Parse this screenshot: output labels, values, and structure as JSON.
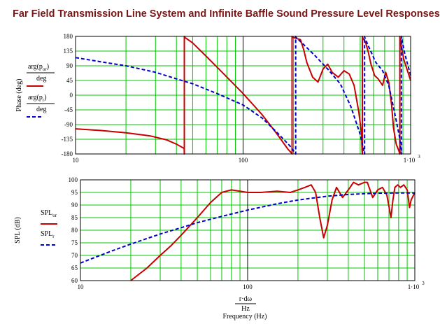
{
  "title": "Far Field Transmission Line System and Infinite Baffle Sound Pressure Level Responses",
  "colors": {
    "grid": "#00c800",
    "line_series": "#c80000",
    "baffle_series": "#0000c8",
    "frame": "#000000",
    "title": "#7a1616"
  },
  "chart_data": [
    {
      "type": "line",
      "x_scale": "log",
      "xlim": [
        10,
        1000
      ],
      "ylim": [
        -180,
        180
      ],
      "xticks": [
        10,
        100,
        1000
      ],
      "xtick_labels": [
        "10",
        "100",
        "1·10"
      ],
      "xtick_exponent": "3",
      "yticks": [
        180,
        135,
        90,
        45,
        0,
        -45,
        -90,
        -135,
        -180
      ],
      "ylabel": "Phase (deg)",
      "legend_entries": [
        {
          "num": "arg(p",
          "sub": "or",
          "close": ")",
          "den": "deg"
        },
        {
          "num": "arg(p",
          "sub": "r",
          "close": ")",
          "den": "deg"
        }
      ],
      "grid": true,
      "series": [
        {
          "color": "red",
          "style": "solid",
          "x": [
            10,
            14,
            20,
            28,
            35,
            40,
            44.5,
            44.6,
            50,
            60,
            75,
            100,
            130,
            160,
            185,
            195,
            196,
            220,
            230,
            240,
            260,
            280,
            300,
            320,
            340,
            370,
            400,
            430,
            460,
            490,
            510,
            513,
            515,
            540,
            560,
            580,
            610,
            640,
            680,
            710,
            740,
            770,
            790,
            820,
            850,
            860,
            862,
            880,
            910,
            950,
            1000
          ],
          "y": [
            -103,
            -108,
            -115,
            -125,
            -137,
            -150,
            -163,
            178,
            160,
            120,
            70,
            5,
            -60,
            -120,
            -165,
            -178,
            178,
            170,
            140,
            100,
            55,
            40,
            80,
            95,
            70,
            55,
            75,
            65,
            30,
            -50,
            -120,
            -170,
            178,
            160,
            130,
            95,
            60,
            50,
            30,
            70,
            40,
            -30,
            -100,
            -150,
            -170,
            -178,
            178,
            150,
            110,
            80,
            45
          ]
        },
        {
          "color": "blue",
          "style": "dashed",
          "x": [
            10,
            15,
            20,
            30,
            40,
            50,
            70,
            100,
            130,
            160,
            190,
            205,
            206,
            230,
            270,
            320,
            380,
            440,
            500,
            530,
            531,
            560,
            620,
            680,
            740,
            800,
            860,
            880,
            881,
            920,
            1000
          ],
          "y": [
            115,
            100,
            90,
            70,
            50,
            35,
            5,
            -30,
            -70,
            -115,
            -155,
            -178,
            178,
            155,
            120,
            80,
            35,
            -35,
            -120,
            -178,
            178,
            150,
            100,
            75,
            30,
            -50,
            -130,
            -178,
            178,
            130,
            60
          ]
        }
      ]
    },
    {
      "type": "line",
      "x_scale": "log",
      "xlim": [
        10,
        1000
      ],
      "ylim": [
        60,
        100
      ],
      "xticks": [
        10,
        100,
        1000
      ],
      "xtick_labels": [
        "10",
        "100",
        "1·10"
      ],
      "xtick_exponent": "3",
      "yticks": [
        100,
        95,
        90,
        85,
        80,
        75,
        70,
        65,
        60
      ],
      "ylabel": "SPL (dB)",
      "legend_entries": [
        {
          "label": "SPL",
          "sub": "or"
        },
        {
          "label": "SPL",
          "sub": "r"
        }
      ],
      "xlabel_frac_num": "r·dω",
      "xlabel_frac_den": "Hz",
      "xlabel": "Frequency (Hz)",
      "grid": true,
      "series": [
        {
          "color": "red",
          "style": "solid",
          "x": [
            20,
            25,
            30,
            35,
            40,
            50,
            60,
            70,
            80,
            90,
            100,
            120,
            150,
            180,
            200,
            220,
            240,
            255,
            270,
            285,
            300,
            320,
            340,
            370,
            400,
            430,
            460,
            500,
            520,
            560,
            600,
            640,
            680,
            720,
            740,
            760,
            790,
            820,
            860,
            900,
            930,
            950,
            1000
          ],
          "y": [
            60,
            65,
            70,
            74,
            78,
            85,
            91,
            95,
            96,
            95.5,
            95,
            95,
            95.5,
            95,
            96,
            97,
            98,
            95,
            85,
            77,
            82,
            92,
            97,
            93,
            96,
            99,
            98,
            99,
            99,
            93,
            96,
            97,
            94,
            85,
            92,
            97,
            98,
            97,
            98,
            96,
            89,
            92,
            95
          ]
        },
        {
          "color": "blue",
          "style": "dashed",
          "x": [
            10,
            15,
            20,
            30,
            40,
            50,
            70,
            100,
            150,
            200,
            300,
            400,
            500,
            600,
            800,
            1000
          ],
          "y": [
            67,
            71.5,
            74.5,
            78.5,
            81,
            83,
            85.5,
            88,
            90.5,
            92,
            93.5,
            94.2,
            94.5,
            94.7,
            94.8,
            94.8
          ]
        }
      ]
    }
  ]
}
